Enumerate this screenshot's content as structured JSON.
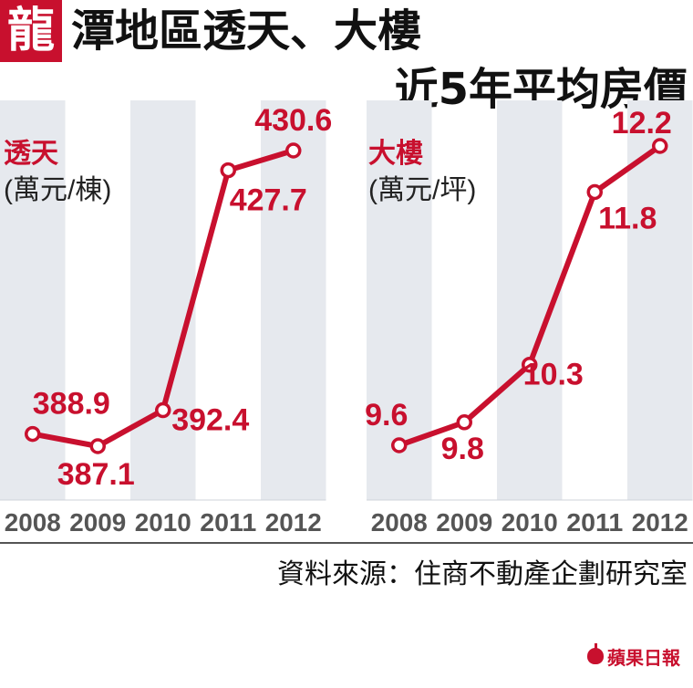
{
  "header": {
    "badge": "龍",
    "title_line1": "潭地區透天、大樓",
    "title_line2": "近5年平均房價"
  },
  "colors": {
    "accent": "#c8102e",
    "stripe": "#e6e9ee"
  },
  "chart_data": [
    {
      "type": "line",
      "title": "透天",
      "subtitle": "(萬元/棟)",
      "categories": [
        "2008",
        "2009",
        "2010",
        "2011",
        "2012"
      ],
      "values": [
        388.9,
        387.1,
        392.4,
        427.7,
        430.6
      ],
      "data_labels": [
        "388.9",
        "387.1",
        "392.4",
        "427.7",
        "430.6"
      ],
      "ylim": [
        382,
        433
      ]
    },
    {
      "type": "line",
      "title": "大樓",
      "subtitle": "(萬元/坪)",
      "categories": [
        "2008",
        "2009",
        "2010",
        "2011",
        "2012"
      ],
      "values": [
        9.6,
        9.8,
        10.3,
        11.8,
        12.2
      ],
      "data_labels": [
        "9.6",
        "9.8",
        "10.3",
        "11.8",
        "12.2"
      ],
      "ylim": [
        9.2,
        12.3
      ]
    }
  ],
  "footer": {
    "source": "資料來源：住商不動產企劃研究室",
    "logo": "蘋果日報"
  }
}
